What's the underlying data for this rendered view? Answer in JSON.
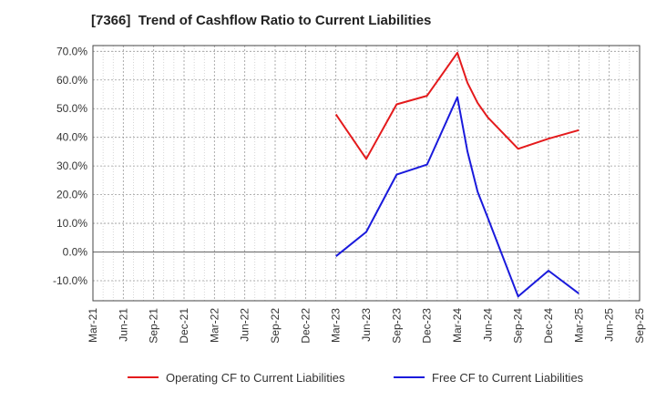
{
  "chart_data": {
    "type": "line",
    "title": "[7366]  Trend of Cashflow Ratio to Current Liabilities",
    "xlabel": "",
    "ylabel": "",
    "x_ticks": [
      "Mar-21",
      "Jun-21",
      "Sep-21",
      "Dec-21",
      "Mar-22",
      "Jun-22",
      "Sep-22",
      "Dec-22",
      "Mar-23",
      "Jun-23",
      "Sep-23",
      "Dec-23",
      "Mar-24",
      "Jun-24",
      "Sep-24",
      "Dec-24",
      "Mar-25",
      "Jun-25",
      "Sep-25"
    ],
    "y_ticks": [
      70,
      60,
      50,
      40,
      30,
      20,
      10,
      0,
      -10
    ],
    "y_tick_format": "percent_1dp",
    "ylim": [
      -17,
      72
    ],
    "grid": true,
    "legend_position": "bottom",
    "series": [
      {
        "name": "Operating CF to Current Liabilities",
        "color": "#e41a1c",
        "x": [
          "Mar-23",
          "Jun-23",
          "Sep-23",
          "Dec-23",
          "Mar-24",
          "Apr-24",
          "May-24",
          "Jun-24",
          "Sep-24",
          "Dec-24",
          "Mar-25"
        ],
        "values": [
          48.0,
          32.5,
          51.5,
          54.5,
          69.5,
          59.0,
          52.0,
          47.0,
          36.0,
          39.5,
          42.5
        ]
      },
      {
        "name": "Free CF to Current Liabilities",
        "color": "#1a1adc",
        "x": [
          "Mar-23",
          "Jun-23",
          "Sep-23",
          "Dec-23",
          "Mar-24",
          "Apr-24",
          "May-24",
          "Jun-24",
          "Sep-24",
          "Dec-24",
          "Mar-25"
        ],
        "values": [
          -1.5,
          7.0,
          27.0,
          30.5,
          54.0,
          35.0,
          21.0,
          12.0,
          -15.5,
          -6.5,
          -14.5
        ]
      }
    ]
  }
}
